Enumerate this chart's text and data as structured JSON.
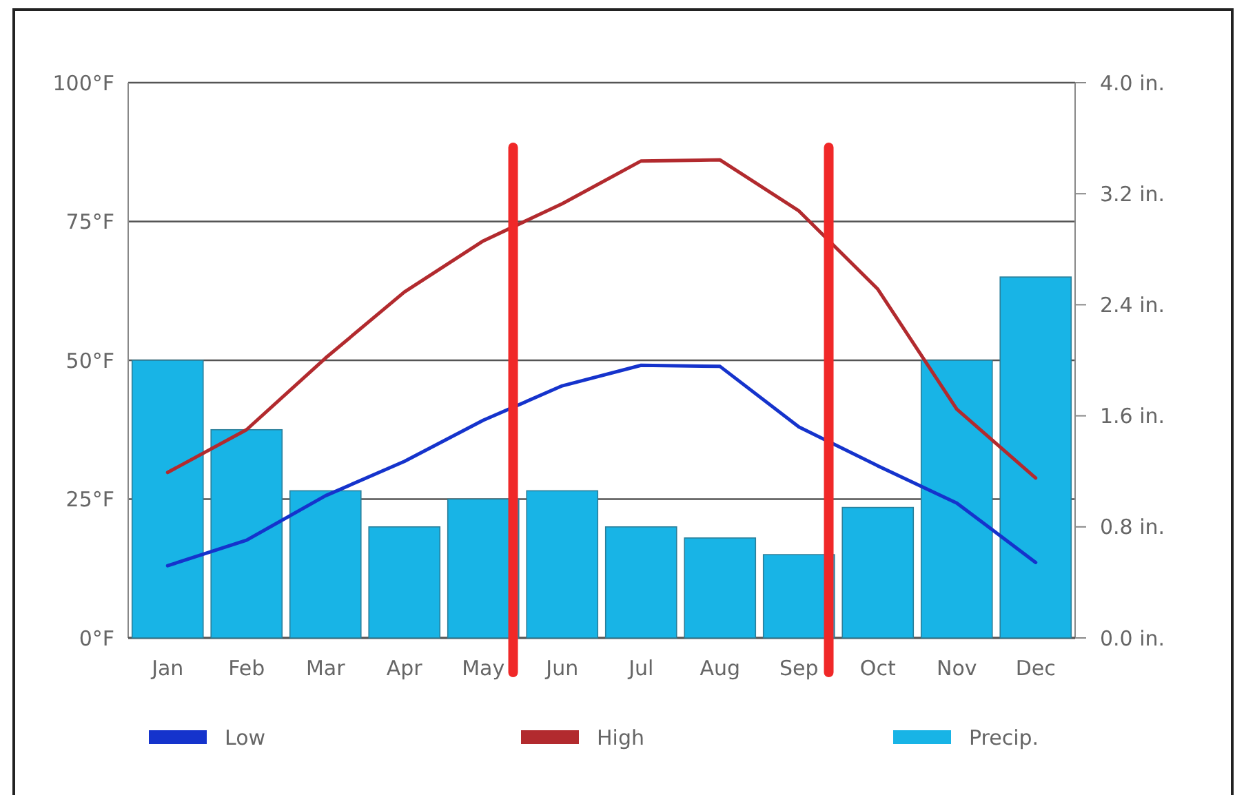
{
  "chart_data": {
    "type": "bar",
    "categories": [
      "Jan",
      "Feb",
      "Mar",
      "Apr",
      "May",
      "Jun",
      "Jul",
      "Aug",
      "Sep",
      "Oct",
      "Nov",
      "Dec"
    ],
    "series": [
      {
        "name": "Low",
        "type": "line",
        "color": "#1533cc",
        "values": [
          13,
          17.6,
          25.6,
          31.8,
          39.2,
          45.4,
          49.1,
          48.9,
          38,
          31,
          24.3,
          13.6
        ]
      },
      {
        "name": "High",
        "type": "line",
        "color": "#b22a2e",
        "values": [
          29.8,
          37.5,
          50.4,
          62.3,
          71.5,
          78.2,
          85.9,
          86.1,
          76.9,
          62.8,
          41.2,
          28.8
        ]
      },
      {
        "name": "Precip.",
        "axis": "y2",
        "color": "#18b4e6",
        "values": [
          2.0,
          1.5,
          1.06,
          0.8,
          1.0,
          1.06,
          0.8,
          0.72,
          0.6,
          0.94,
          2.0,
          2.6
        ]
      }
    ],
    "ylim": [
      0,
      100
    ],
    "yticks": [
      {
        "value": 0,
        "label": "0°F"
      },
      {
        "value": 25,
        "label": "25°F"
      },
      {
        "value": 50,
        "label": "50°F"
      },
      {
        "value": 75,
        "label": "75°F"
      },
      {
        "value": 100,
        "label": "100°F"
      }
    ],
    "y2lim": [
      0,
      4
    ],
    "y2ticks": [
      {
        "value": 0,
        "label": "0.0 in."
      },
      {
        "value": 0.8,
        "label": "0.8 in."
      },
      {
        "value": 1.6,
        "label": "1.6 in."
      },
      {
        "value": 2.4,
        "label": "2.4 in."
      },
      {
        "value": 3.2,
        "label": "3.2 in."
      },
      {
        "value": 4,
        "label": "4.0 in."
      }
    ],
    "ref_lines": [
      {
        "axis": "x",
        "value": "May",
        "color": "#f02828"
      },
      {
        "axis": "x",
        "value": "Sep",
        "color": "#f02828"
      }
    ],
    "grid": "y",
    "legend": "bottom"
  }
}
